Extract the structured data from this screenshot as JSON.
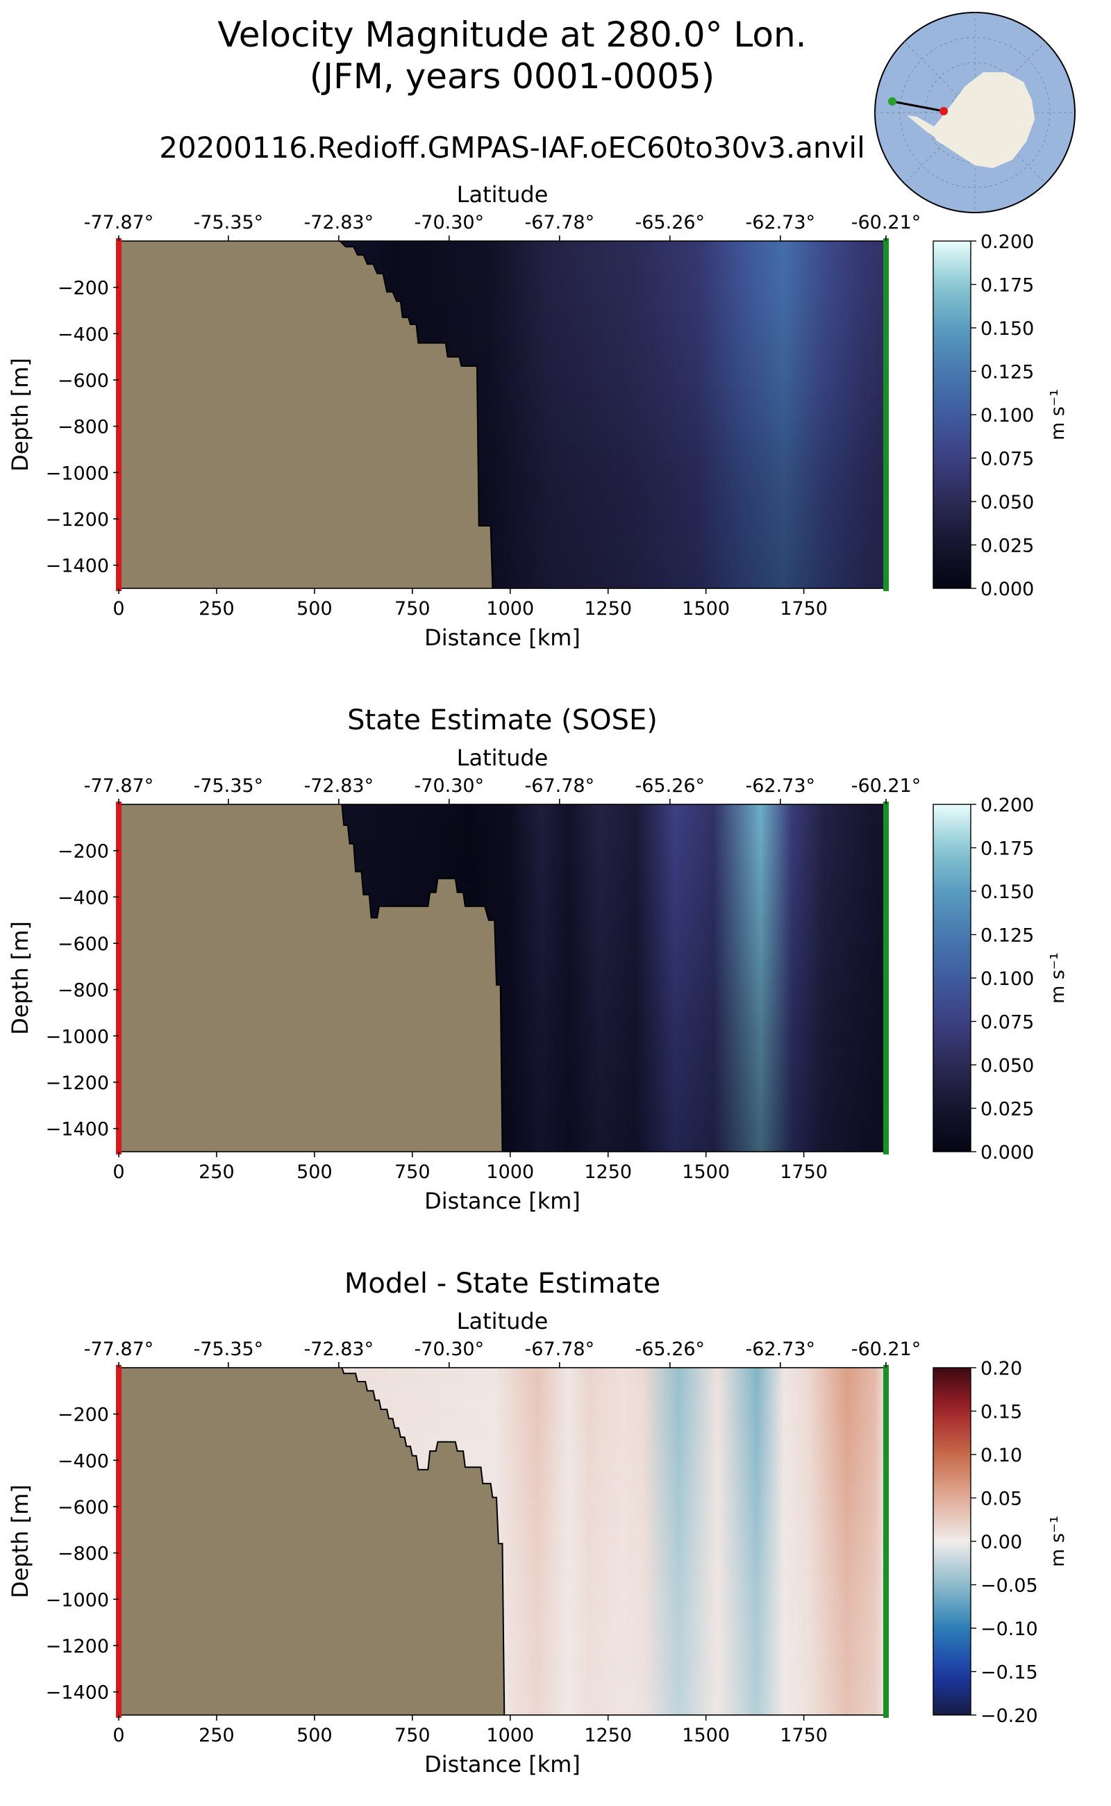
{
  "figure": {
    "title_line1": "Velocity Magnitude at 280.0° Lon.",
    "title_line2": "(JFM, years 0001-0005)",
    "subtitle": "20200116.Redioff.GMPAS-IAF.oEC60to30v3.anvil"
  },
  "chart_data": [
    {
      "type": "heatmap",
      "title": "",
      "xlabel": "Distance [km]",
      "x2label": "Latitude",
      "ylabel": "Depth [m]",
      "xlim": [
        0,
        1960
      ],
      "ylim": [
        -1500,
        0
      ],
      "x_ticks": [
        0,
        250,
        500,
        750,
        1000,
        1250,
        1500,
        1750
      ],
      "x_tick_labels": [
        "0",
        "250",
        "500",
        "750",
        "1000",
        "1250",
        "1500",
        "1750"
      ],
      "y_ticks": [
        -200,
        -400,
        -600,
        -800,
        -1000,
        -1200,
        -1400
      ],
      "y_tick_labels": [
        "−200",
        "−400",
        "−600",
        "−800",
        "−1000",
        "−1200",
        "−1400"
      ],
      "lat_ticks": [
        0,
        280,
        562,
        844,
        1126,
        1408,
        1690,
        1960
      ],
      "lat_tick_labels": [
        "-77.87°",
        "-75.35°",
        "-72.83°",
        "-70.30°",
        "-67.78°",
        "-65.26°",
        "-62.73°",
        "-60.21°"
      ],
      "colorbar": {
        "label": "m s⁻¹",
        "range": [
          0,
          0.2
        ],
        "ticks": [
          "0.000",
          "0.025",
          "0.050",
          "0.075",
          "0.100",
          "0.125",
          "0.150",
          "0.175",
          "0.200"
        ],
        "colormap": "ice"
      },
      "bathymetry": [
        [
          0,
          0
        ],
        [
          565,
          0
        ],
        [
          580,
          -25
        ],
        [
          600,
          -25
        ],
        [
          610,
          -60
        ],
        [
          625,
          -60
        ],
        [
          635,
          -100
        ],
        [
          650,
          -100
        ],
        [
          660,
          -140
        ],
        [
          675,
          -140
        ],
        [
          685,
          -220
        ],
        [
          700,
          -220
        ],
        [
          710,
          -260
        ],
        [
          720,
          -260
        ],
        [
          725,
          -330
        ],
        [
          740,
          -330
        ],
        [
          745,
          -360
        ],
        [
          760,
          -360
        ],
        [
          765,
          -440
        ],
        [
          835,
          -440
        ],
        [
          840,
          -500
        ],
        [
          870,
          -500
        ],
        [
          875,
          -540
        ],
        [
          915,
          -540
        ],
        [
          920,
          -1230
        ],
        [
          950,
          -1230
        ],
        [
          955,
          -1500
        ],
        [
          0,
          -1500
        ]
      ],
      "columns": [
        {
          "x": 560,
          "v": 0.02
        },
        {
          "x": 700,
          "v": 0.008
        },
        {
          "x": 800,
          "v": 0.012
        },
        {
          "x": 950,
          "v": 0.018
        },
        {
          "x": 1100,
          "v": 0.04
        },
        {
          "x": 1300,
          "v": 0.05
        },
        {
          "x": 1480,
          "v": 0.065
        },
        {
          "x": 1600,
          "v": 0.095
        },
        {
          "x": 1700,
          "v": 0.115
        },
        {
          "x": 1800,
          "v": 0.085
        },
        {
          "x": 1900,
          "v": 0.065
        },
        {
          "x": 1960,
          "v": 0.058
        }
      ],
      "depth_profile": [
        [
          0,
          1.0
        ],
        [
          -200,
          0.98
        ],
        [
          -600,
          0.88
        ],
        [
          -1000,
          0.72
        ],
        [
          -1500,
          0.62
        ]
      ]
    },
    {
      "type": "heatmap",
      "title": "State Estimate (SOSE)",
      "xlabel": "Distance [km]",
      "x2label": "Latitude",
      "ylabel": "Depth [m]",
      "xlim": [
        0,
        1960
      ],
      "ylim": [
        -1500,
        0
      ],
      "x_ticks": [
        0,
        250,
        500,
        750,
        1000,
        1250,
        1500,
        1750
      ],
      "x_tick_labels": [
        "0",
        "250",
        "500",
        "750",
        "1000",
        "1250",
        "1500",
        "1750"
      ],
      "y_ticks": [
        -200,
        -400,
        -600,
        -800,
        -1000,
        -1200,
        -1400
      ],
      "y_tick_labels": [
        "−200",
        "−400",
        "−600",
        "−800",
        "−1000",
        "−1200",
        "−1400"
      ],
      "lat_ticks": [
        0,
        280,
        562,
        844,
        1126,
        1408,
        1690,
        1960
      ],
      "lat_tick_labels": [
        "-77.87°",
        "-75.35°",
        "-72.83°",
        "-70.30°",
        "-67.78°",
        "-65.26°",
        "-62.73°",
        "-60.21°"
      ],
      "colorbar": {
        "label": "m s⁻¹",
        "range": [
          0,
          0.2
        ],
        "ticks": [
          "0.000",
          "0.025",
          "0.050",
          "0.075",
          "0.100",
          "0.125",
          "0.150",
          "0.175",
          "0.200"
        ],
        "colormap": "ice"
      },
      "bathymetry": [
        [
          0,
          0
        ],
        [
          570,
          0
        ],
        [
          575,
          -90
        ],
        [
          585,
          -90
        ],
        [
          590,
          -170
        ],
        [
          600,
          -170
        ],
        [
          605,
          -290
        ],
        [
          620,
          -290
        ],
        [
          625,
          -390
        ],
        [
          640,
          -390
        ],
        [
          645,
          -490
        ],
        [
          660,
          -490
        ],
        [
          665,
          -440
        ],
        [
          790,
          -440
        ],
        [
          795,
          -380
        ],
        [
          810,
          -380
        ],
        [
          815,
          -320
        ],
        [
          860,
          -320
        ],
        [
          865,
          -380
        ],
        [
          880,
          -380
        ],
        [
          885,
          -440
        ],
        [
          935,
          -440
        ],
        [
          945,
          -500
        ],
        [
          960,
          -500
        ],
        [
          965,
          -780
        ],
        [
          975,
          -780
        ],
        [
          980,
          -1500
        ],
        [
          0,
          -1500
        ]
      ],
      "columns": [
        {
          "x": 570,
          "v": 0.015
        },
        {
          "x": 900,
          "v": 0.005
        },
        {
          "x": 1000,
          "v": 0.012
        },
        {
          "x": 1080,
          "v": 0.035
        },
        {
          "x": 1150,
          "v": 0.02
        },
        {
          "x": 1230,
          "v": 0.04
        },
        {
          "x": 1320,
          "v": 0.03
        },
        {
          "x": 1420,
          "v": 0.075
        },
        {
          "x": 1520,
          "v": 0.06
        },
        {
          "x": 1640,
          "v": 0.16
        },
        {
          "x": 1720,
          "v": 0.07
        },
        {
          "x": 1800,
          "v": 0.04
        },
        {
          "x": 1880,
          "v": 0.03
        },
        {
          "x": 1960,
          "v": 0.02
        }
      ],
      "depth_profile": [
        [
          0,
          1.0
        ],
        [
          -200,
          0.95
        ],
        [
          -600,
          0.82
        ],
        [
          -1000,
          0.68
        ],
        [
          -1500,
          0.55
        ]
      ]
    },
    {
      "type": "heatmap",
      "title": "Model - State Estimate",
      "xlabel": "Distance [km]",
      "x2label": "Latitude",
      "ylabel": "Depth [m]",
      "xlim": [
        0,
        1960
      ],
      "ylim": [
        -1500,
        0
      ],
      "x_ticks": [
        0,
        250,
        500,
        750,
        1000,
        1250,
        1500,
        1750
      ],
      "x_tick_labels": [
        "0",
        "250",
        "500",
        "750",
        "1000",
        "1250",
        "1500",
        "1750"
      ],
      "y_ticks": [
        -200,
        -400,
        -600,
        -800,
        -1000,
        -1200,
        -1400
      ],
      "y_tick_labels": [
        "−200",
        "−400",
        "−600",
        "−800",
        "−1000",
        "−1200",
        "−1400"
      ],
      "lat_ticks": [
        0,
        280,
        562,
        844,
        1126,
        1408,
        1690,
        1960
      ],
      "lat_tick_labels": [
        "-77.87°",
        "-75.35°",
        "-72.83°",
        "-70.30°",
        "-67.78°",
        "-65.26°",
        "-62.73°",
        "-60.21°"
      ],
      "colorbar": {
        "label": "m s⁻¹",
        "range": [
          -0.2,
          0.2
        ],
        "ticks": [
          "−0.20",
          "−0.15",
          "−0.10",
          "−0.05",
          "0.00",
          "0.05",
          "0.10",
          "0.15",
          "0.20"
        ],
        "colormap": "balance"
      },
      "bathymetry": [
        [
          0,
          0
        ],
        [
          570,
          0
        ],
        [
          575,
          -25
        ],
        [
          605,
          -25
        ],
        [
          610,
          -60
        ],
        [
          630,
          -60
        ],
        [
          635,
          -100
        ],
        [
          650,
          -100
        ],
        [
          655,
          -140
        ],
        [
          665,
          -140
        ],
        [
          670,
          -180
        ],
        [
          685,
          -180
        ],
        [
          690,
          -220
        ],
        [
          700,
          -220
        ],
        [
          705,
          -260
        ],
        [
          715,
          -260
        ],
        [
          720,
          -300
        ],
        [
          730,
          -300
        ],
        [
          735,
          -340
        ],
        [
          745,
          -340
        ],
        [
          750,
          -380
        ],
        [
          760,
          -380
        ],
        [
          765,
          -440
        ],
        [
          790,
          -440
        ],
        [
          795,
          -360
        ],
        [
          810,
          -360
        ],
        [
          815,
          -320
        ],
        [
          860,
          -320
        ],
        [
          865,
          -360
        ],
        [
          880,
          -360
        ],
        [
          885,
          -430
        ],
        [
          925,
          -430
        ],
        [
          930,
          -500
        ],
        [
          950,
          -500
        ],
        [
          955,
          -560
        ],
        [
          965,
          -560
        ],
        [
          970,
          -760
        ],
        [
          980,
          -760
        ],
        [
          985,
          -1500
        ],
        [
          0,
          -1500
        ]
      ],
      "columns": [
        {
          "x": 570,
          "v": 0.01
        },
        {
          "x": 960,
          "v": 0.005
        },
        {
          "x": 1070,
          "v": 0.03
        },
        {
          "x": 1150,
          "v": 0.005
        },
        {
          "x": 1200,
          "v": 0.018
        },
        {
          "x": 1290,
          "v": 0.01
        },
        {
          "x": 1340,
          "v": 0.015
        },
        {
          "x": 1430,
          "v": -0.045
        },
        {
          "x": 1530,
          "v": 0.008
        },
        {
          "x": 1630,
          "v": -0.055
        },
        {
          "x": 1700,
          "v": 0.005
        },
        {
          "x": 1760,
          "v": 0.015
        },
        {
          "x": 1860,
          "v": 0.06
        },
        {
          "x": 1930,
          "v": 0.04
        },
        {
          "x": 1960,
          "v": 0.01
        }
      ],
      "depth_profile": [
        [
          0,
          1.0
        ],
        [
          -200,
          0.95
        ],
        [
          -600,
          0.8
        ],
        [
          -1000,
          0.65
        ],
        [
          -1500,
          0.55
        ]
      ]
    }
  ]
}
